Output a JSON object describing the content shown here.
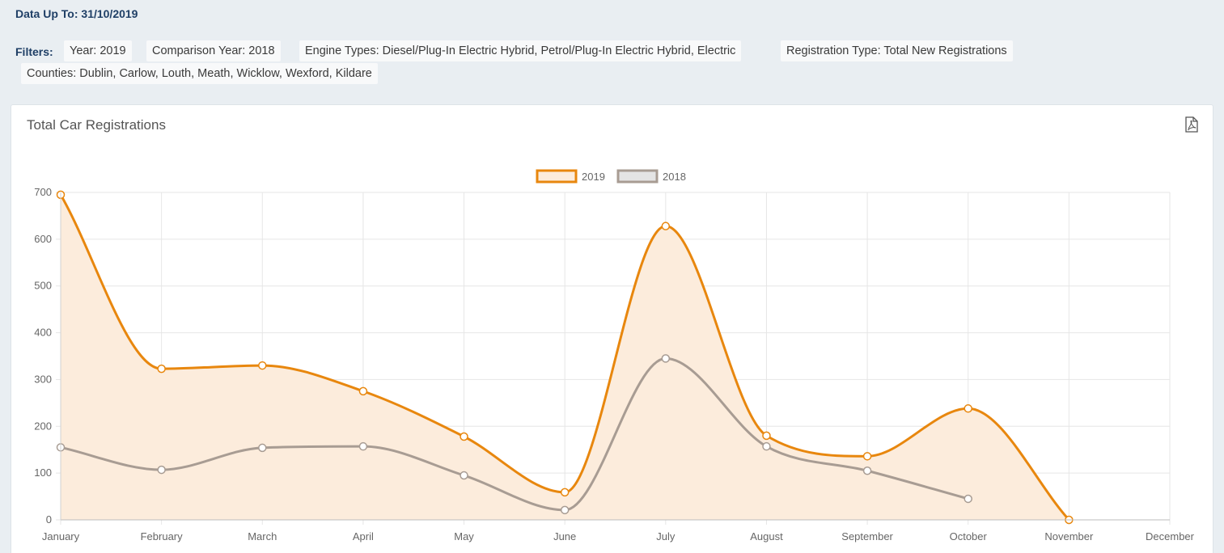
{
  "header": {
    "data_up_to": "Data Up To: 31/10/2019"
  },
  "filters": {
    "label": "Filters:",
    "chips": [
      "Year: 2019",
      "Comparison Year: 2018",
      "Engine Types: Diesel/Plug-In Electric Hybrid, Petrol/Plug-In Electric Hybrid, Electric",
      "Registration Type: Total New Registrations",
      "Counties: Dublin, Carlow, Louth, Meath, Wicklow, Wexford, Kildare"
    ]
  },
  "panel": {
    "title": "Total Car Registrations",
    "export_icon": "pdf-file-icon"
  },
  "colors": {
    "series_2019": "#e8870e",
    "series_2019_fill": "#fcecdc",
    "series_2018": "#a89c93",
    "series_2018_legend_fill": "#e4e4e4",
    "grid": "#e6e6e6"
  },
  "chart_data": {
    "type": "line",
    "title": "Total Car Registrations",
    "categories": [
      "January",
      "February",
      "March",
      "April",
      "May",
      "June",
      "July",
      "August",
      "September",
      "October",
      "November",
      "December"
    ],
    "series": [
      {
        "name": "2019",
        "values": [
          695,
          323,
          330,
          275,
          178,
          59,
          628,
          180,
          136,
          238,
          0,
          null
        ],
        "filled": true
      },
      {
        "name": "2018",
        "values": [
          155,
          107,
          154,
          157,
          95,
          21,
          345,
          157,
          105,
          45,
          null,
          null
        ],
        "filled": false
      }
    ],
    "yticks": [
      0,
      100,
      200,
      300,
      400,
      500,
      600,
      700
    ],
    "ylim": [
      0,
      700
    ],
    "legend": "top-center",
    "grid": true
  }
}
